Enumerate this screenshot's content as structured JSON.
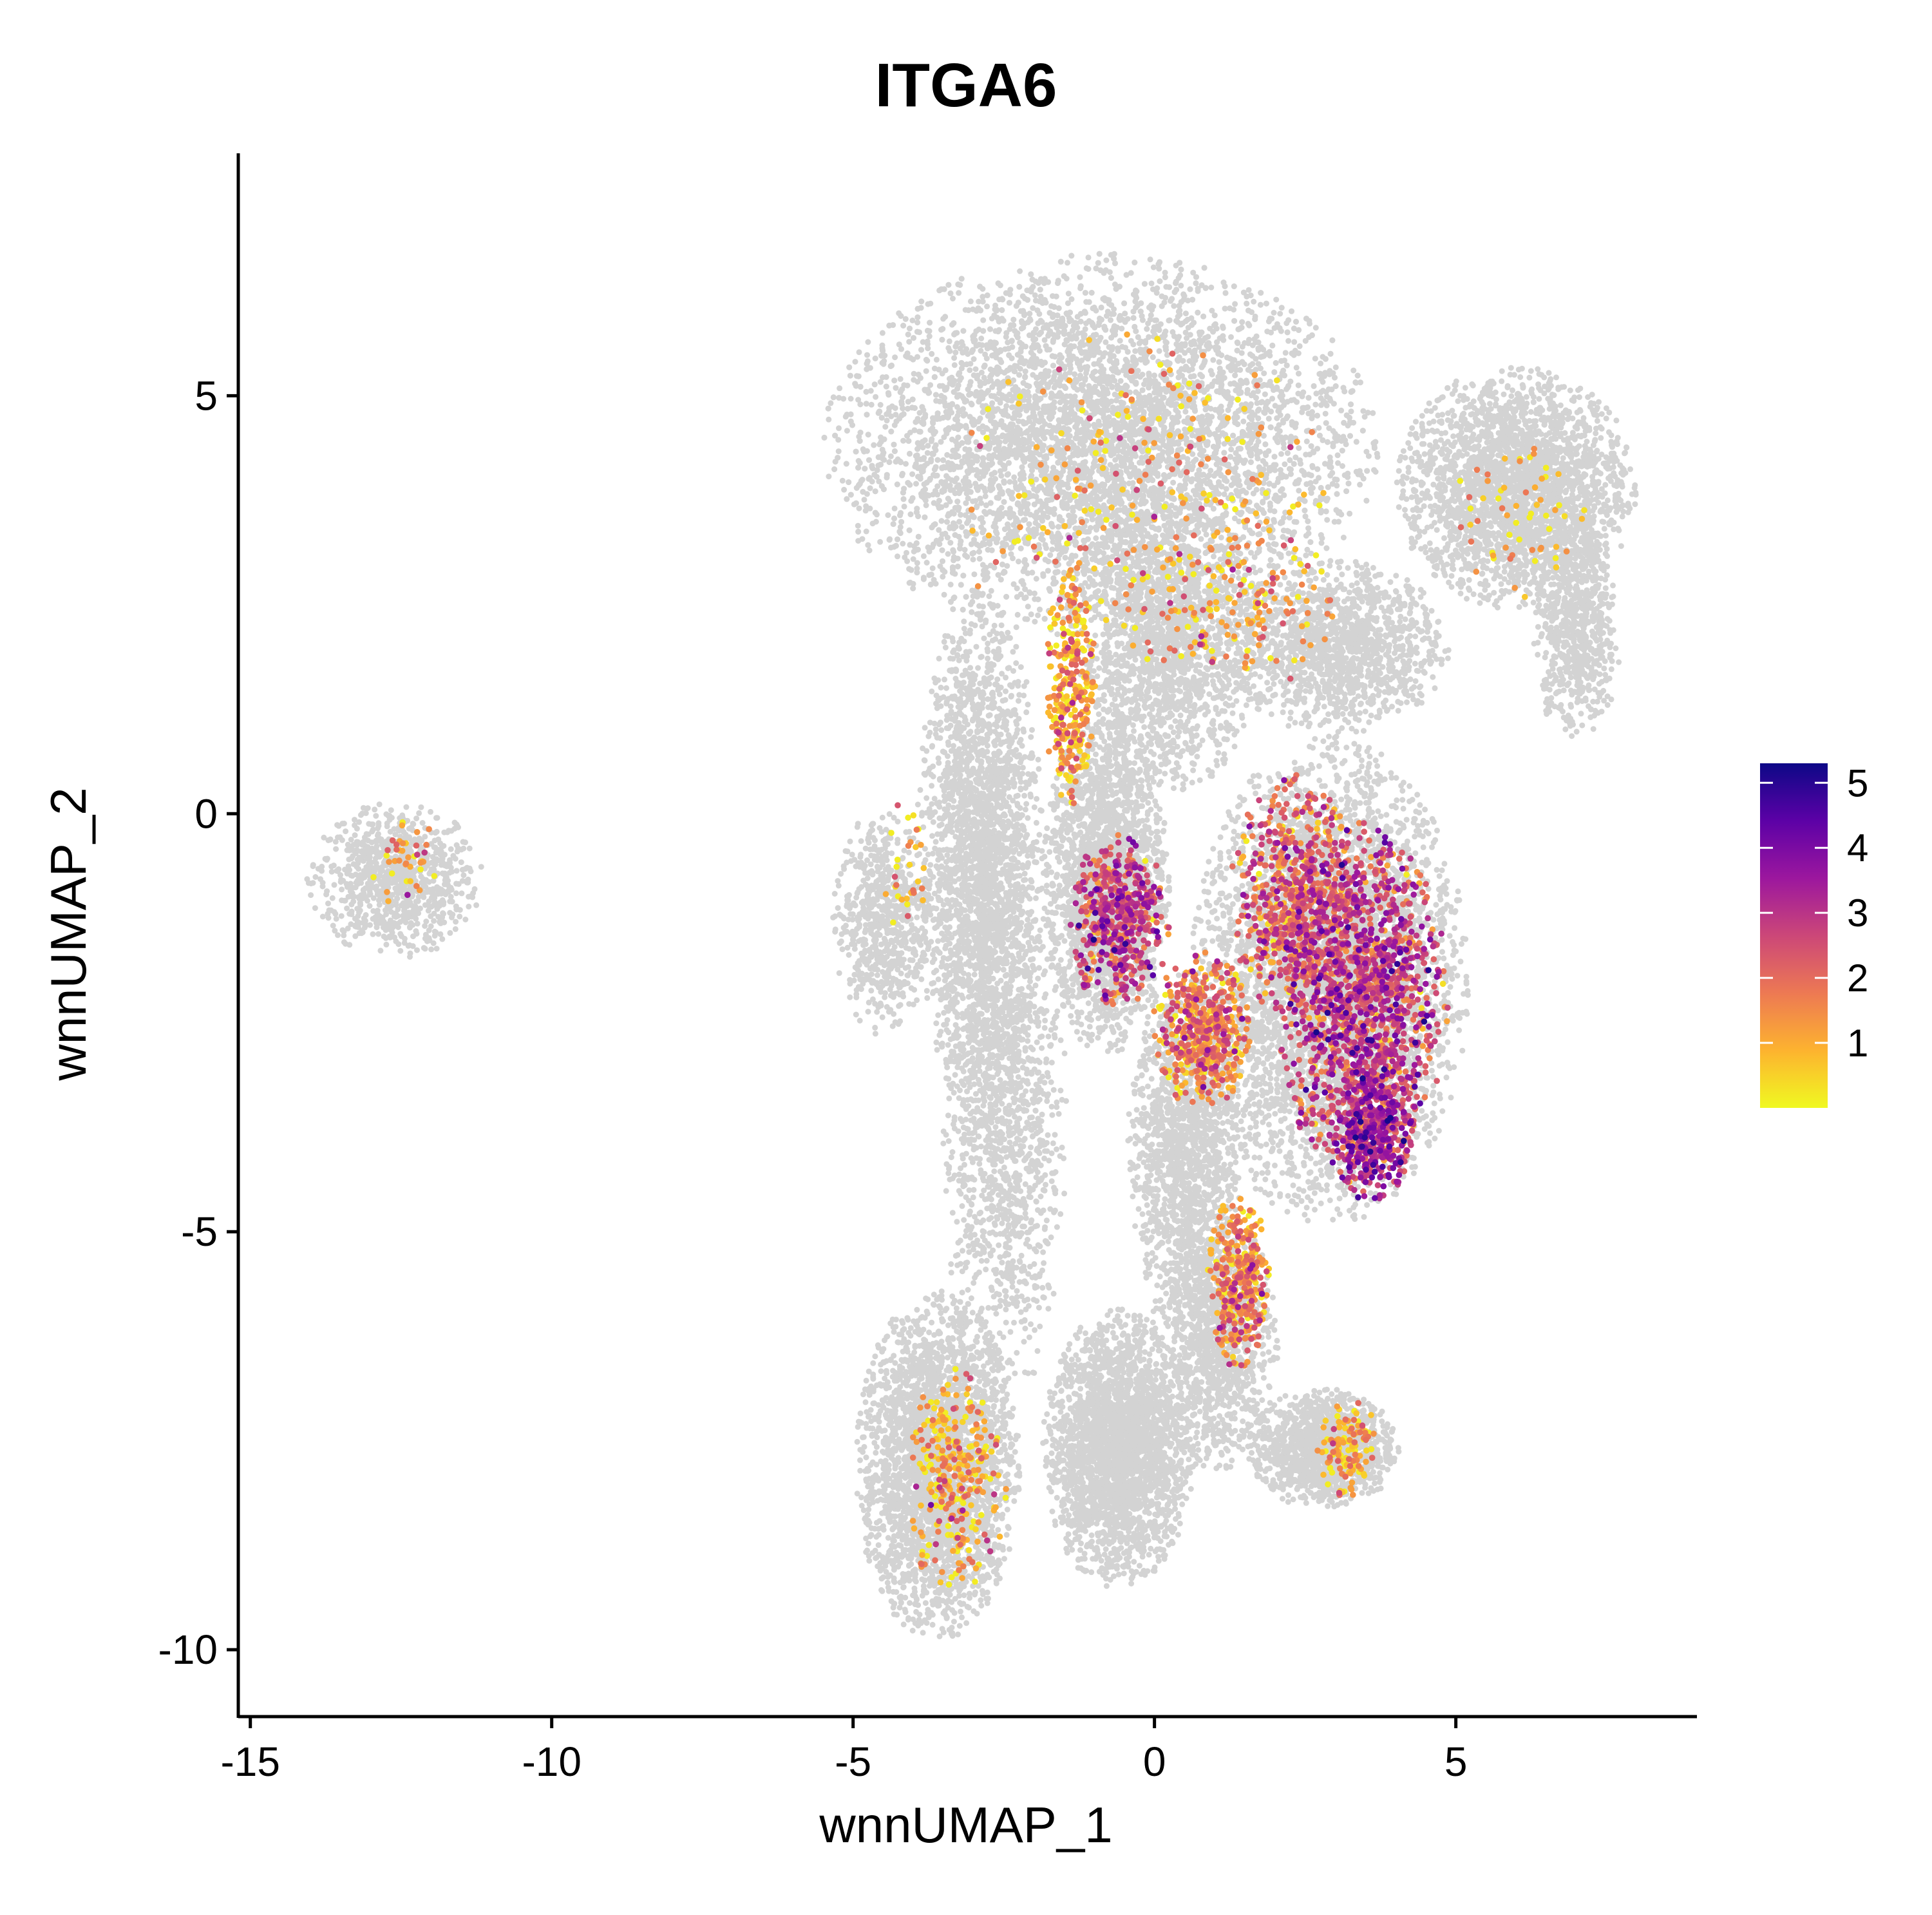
{
  "chart_data": {
    "type": "scatter",
    "title": "ITGA6",
    "xlabel": "wnnUMAP_1",
    "ylabel": "wnnUMAP_2",
    "xlim": [
      -15.2,
      9.0
    ],
    "ylim": [
      -10.8,
      7.9
    ],
    "x_ticks": [
      -15,
      -10,
      -5,
      0,
      5
    ],
    "x_tick_labels": [
      "-15",
      "-10",
      "-5",
      "0",
      "5"
    ],
    "y_ticks": [
      -10,
      -5,
      0,
      5
    ],
    "y_tick_labels": [
      "-10",
      "-5",
      "0",
      "5"
    ],
    "background_color": "#D3D3D3",
    "grid": false,
    "legend": {
      "position": "right",
      "type": "colorbar",
      "range": [
        0,
        5.3
      ],
      "ticks": [
        1,
        2,
        3,
        4,
        5
      ],
      "tick_labels": [
        "1",
        "2",
        "3",
        "4",
        "5"
      ],
      "colors": [
        "#F0F921",
        "#FDB32F",
        "#ED7953",
        "#CC4778",
        "#9C179E",
        "#5C01A6",
        "#0D0887"
      ]
    },
    "background_clusters": [
      {
        "cx": -12.6,
        "cy": -0.8,
        "rx": 1.4,
        "ry": 0.9,
        "n": 900
      },
      {
        "cx": -0.9,
        "cy": 4.4,
        "rx": 4.4,
        "ry": 2.2,
        "n": 8000
      },
      {
        "cx": 6.0,
        "cy": 3.9,
        "rx": 1.9,
        "ry": 1.4,
        "n": 2600
      },
      {
        "cx": 7.0,
        "cy": 2.2,
        "rx": 0.7,
        "ry": 1.3,
        "n": 700
      },
      {
        "cx": 0.2,
        "cy": 2.0,
        "rx": 1.5,
        "ry": 1.7,
        "n": 1800
      },
      {
        "cx": 3.0,
        "cy": 2.0,
        "rx": 1.8,
        "ry": 1.0,
        "n": 1400
      },
      {
        "cx": -4.5,
        "cy": -1.3,
        "rx": 0.8,
        "ry": 1.3,
        "n": 700
      },
      {
        "cx": -2.9,
        "cy": -0.5,
        "rx": 1.0,
        "ry": 3.0,
        "n": 2200
      },
      {
        "cx": -0.8,
        "cy": -0.8,
        "rx": 1.0,
        "ry": 2.0,
        "n": 2200
      },
      {
        "cx": 2.9,
        "cy": -2.0,
        "rx": 2.2,
        "ry": 2.8,
        "n": 4500
      },
      {
        "cx": 0.5,
        "cy": -4.0,
        "rx": 0.9,
        "ry": 2.0,
        "n": 1400
      },
      {
        "cx": -3.6,
        "cy": -7.8,
        "rx": 1.3,
        "ry": 2.0,
        "n": 3000
      },
      {
        "cx": -0.6,
        "cy": -7.6,
        "rx": 1.2,
        "ry": 1.6,
        "n": 2600
      },
      {
        "cx": 1.0,
        "cy": -6.3,
        "rx": 1.0,
        "ry": 1.5,
        "n": 1200
      },
      {
        "cx": 2.8,
        "cy": -7.6,
        "rx": 1.2,
        "ry": 0.7,
        "n": 1200
      },
      {
        "cx": -2.5,
        "cy": -3.5,
        "rx": 1.0,
        "ry": 3.5,
        "n": 1500
      }
    ],
    "expression_clusters": [
      {
        "cx": 3.4,
        "cy": -2.2,
        "rx": 1.4,
        "ry": 2.0,
        "n": 1400,
        "mean": 2.6
      },
      {
        "cx": 2.3,
        "cy": -1.0,
        "rx": 1.0,
        "ry": 1.4,
        "n": 600,
        "mean": 2.0
      },
      {
        "cx": 3.6,
        "cy": -3.8,
        "rx": 0.7,
        "ry": 0.8,
        "n": 400,
        "mean": 3.0
      },
      {
        "cx": -0.6,
        "cy": -1.3,
        "rx": 0.8,
        "ry": 1.0,
        "n": 500,
        "mean": 2.6
      },
      {
        "cx": -1.4,
        "cy": 1.5,
        "rx": 0.4,
        "ry": 1.4,
        "n": 300,
        "mean": 1.0
      },
      {
        "cx": 0.8,
        "cy": -2.6,
        "rx": 0.8,
        "ry": 0.9,
        "n": 500,
        "mean": 1.5
      },
      {
        "cx": 1.4,
        "cy": -5.6,
        "rx": 0.5,
        "ry": 1.0,
        "n": 350,
        "mean": 1.4
      },
      {
        "cx": -3.3,
        "cy": -8.0,
        "rx": 0.8,
        "ry": 1.3,
        "n": 300,
        "mean": 1.1
      },
      {
        "cx": 3.2,
        "cy": -7.6,
        "rx": 0.5,
        "ry": 0.6,
        "n": 120,
        "mean": 0.9
      },
      {
        "cx": -0.3,
        "cy": 3.8,
        "rx": 3.0,
        "ry": 2.0,
        "n": 260,
        "mean": 1.0
      },
      {
        "cx": 1.5,
        "cy": 2.5,
        "rx": 1.5,
        "ry": 1.0,
        "n": 140,
        "mean": 1.3
      },
      {
        "cx": 6.0,
        "cy": 3.5,
        "rx": 1.2,
        "ry": 1.0,
        "n": 60,
        "mean": 0.8
      },
      {
        "cx": -12.4,
        "cy": -0.6,
        "rx": 0.6,
        "ry": 0.5,
        "n": 40,
        "mean": 1.0
      },
      {
        "cx": -4.2,
        "cy": -0.8,
        "rx": 0.4,
        "ry": 0.9,
        "n": 30,
        "mean": 0.6
      }
    ]
  }
}
